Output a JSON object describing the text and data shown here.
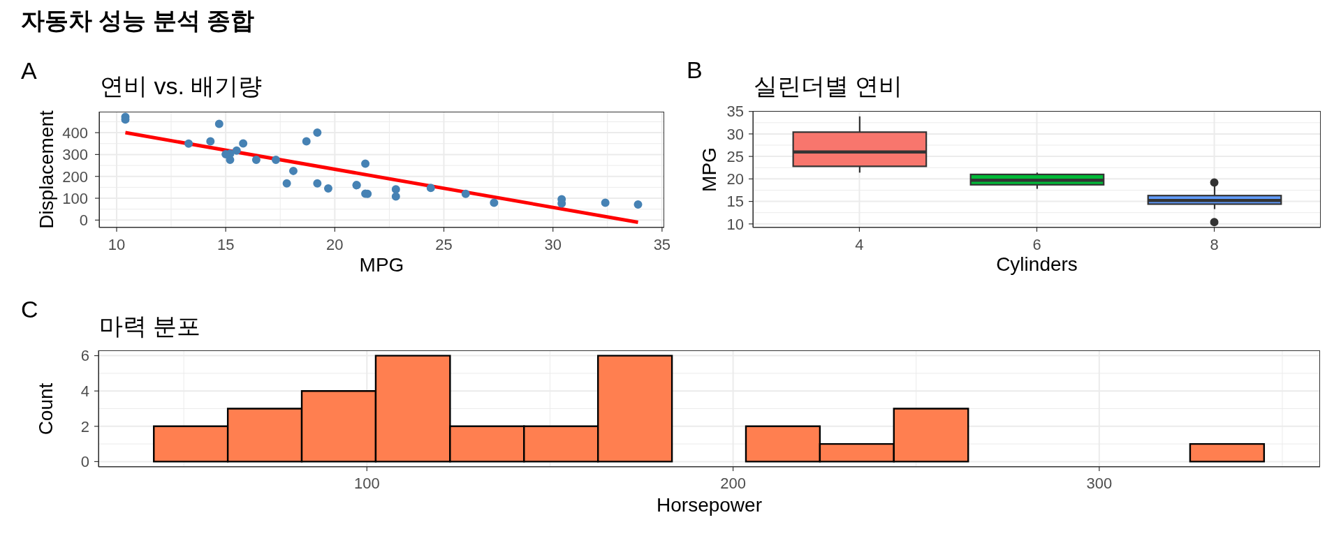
{
  "chart_data": [
    {
      "type": "other",
      "title": "자동차 성능 분석 종합"
    },
    {
      "type": "scatter",
      "title": "연비 vs. 배기량",
      "annotations": [
        "A"
      ],
      "xlabel": "MPG",
      "ylabel": "Displacement",
      "series": [
        {
          "type": "scatter",
          "color": "#4682b4",
          "marker": "circle",
          "x": [
            21,
            21,
            22.8,
            21.4,
            18.7,
            18.1,
            14.3,
            24.4,
            22.8,
            19.2,
            17.8,
            16.4,
            17.3,
            15.2,
            10.4,
            10.4,
            14.7,
            32.4,
            30.4,
            33.9,
            21.5,
            15.5,
            15.2,
            13.3,
            19.2,
            27.3,
            26,
            30.4,
            15.8,
            19.7,
            15,
            21.4
          ],
          "values": [
            160,
            160,
            108,
            258,
            360,
            225,
            360,
            147,
            141,
            168,
            168,
            276,
            276,
            276,
            472,
            460,
            440,
            79,
            76,
            71,
            120,
            318,
            304,
            350,
            400,
            79,
            120,
            95,
            351,
            145,
            301,
            121
          ]
        },
        {
          "type": "line",
          "color": "#ff0000",
          "marker": "none",
          "x": [
            10.4,
            33.9
          ],
          "values": [
            400,
            -10
          ]
        }
      ],
      "xlim": [
        9.2,
        35.1
      ],
      "ylim": [
        -34,
        496
      ],
      "xticks": [
        10,
        15,
        20,
        25,
        30,
        35
      ],
      "yticks": [
        0,
        100,
        200,
        300,
        400
      ],
      "grid": true
    },
    {
      "type": "box",
      "title": "실린더별 연비",
      "annotations": [
        "B"
      ],
      "xlabel": "Cylinders",
      "ylabel": "MPG",
      "categories": [
        "4",
        "6",
        "8"
      ],
      "colors": [
        "#f8766d",
        "#00ba38",
        "#619cff"
      ],
      "boxes": [
        {
          "low": 21.4,
          "q1": 22.8,
          "median": 26,
          "q3": 30.4,
          "high": 33.9
        },
        {
          "low": 17.8,
          "q1": 18.7,
          "median": 19.7,
          "q3": 21,
          "high": 21.4
        },
        {
          "low": 13.3,
          "q1": 14.4,
          "median": 15.2,
          "q3": 16.3,
          "high": 18.7,
          "outliers": [
            10.4,
            19.2
          ]
        }
      ],
      "ylim": [
        9.2,
        35.1
      ],
      "yticks": [
        10,
        15,
        20,
        25,
        30,
        35
      ],
      "grid": true
    },
    {
      "type": "histogram",
      "title": "마력 분포",
      "annotations": [
        "C"
      ],
      "xlabel": "Horsepower",
      "ylabel": "Count",
      "bins": [
        41.9,
        62.1,
        82.3,
        102.5,
        122.8,
        143,
        163.2,
        183.4,
        203.6,
        223.8,
        244,
        264.3,
        324.9,
        345.1
      ],
      "values": [
        2,
        3,
        4,
        6,
        2,
        2,
        6,
        0,
        2,
        1,
        3,
        0,
        1
      ],
      "color": "#ff7f50",
      "xlim": [
        26.7,
        360.3
      ],
      "xticks": [
        100,
        200,
        300
      ],
      "ylim": [
        -0.3,
        6.3
      ],
      "yticks": [
        0,
        2,
        4,
        6
      ],
      "grid": true
    }
  ]
}
